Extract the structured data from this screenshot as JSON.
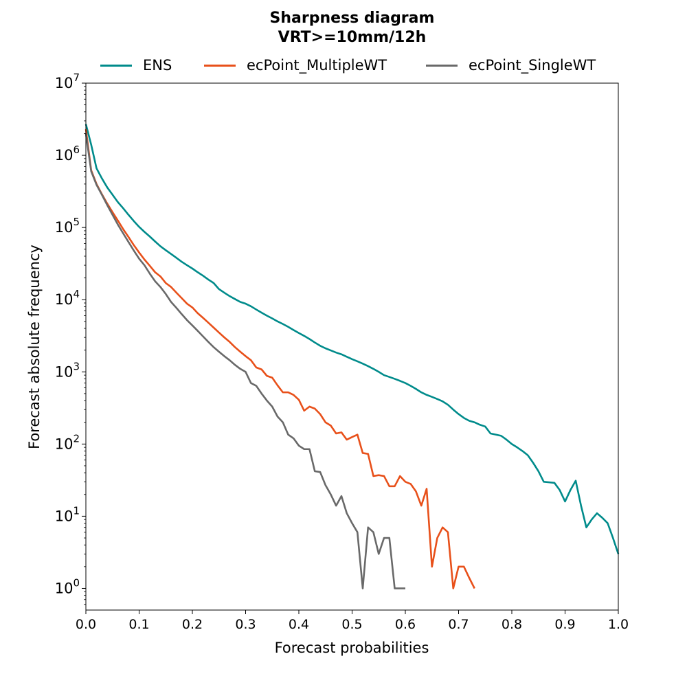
{
  "chart_data": {
    "type": "line",
    "title": "Sharpness diagram",
    "subtitle": "VRT>=10mm/12h",
    "xlabel": "Forecast probabilities",
    "ylabel": "Forecast absolute frequency",
    "xlim": [
      0.0,
      1.0
    ],
    "ylim_log10": [
      -0.3,
      7
    ],
    "yscale": "log",
    "grid": false,
    "legend_position": "top-center",
    "x_ticks": [
      "0.0",
      "0.1",
      "0.2",
      "0.3",
      "0.4",
      "0.5",
      "0.6",
      "0.7",
      "0.8",
      "0.9",
      "1.0"
    ],
    "y_ticks": [
      {
        "base": "10",
        "exp": "0"
      },
      {
        "base": "10",
        "exp": "1"
      },
      {
        "base": "10",
        "exp": "2"
      },
      {
        "base": "10",
        "exp": "3"
      },
      {
        "base": "10",
        "exp": "4"
      },
      {
        "base": "10",
        "exp": "5"
      },
      {
        "base": "10",
        "exp": "6"
      },
      {
        "base": "10",
        "exp": "7"
      }
    ],
    "series": [
      {
        "name": "ENS",
        "color": "#008b8b",
        "x": [
          0.0,
          0.01,
          0.02,
          0.03,
          0.04,
          0.05,
          0.06,
          0.07,
          0.08,
          0.09,
          0.1,
          0.11,
          0.12,
          0.13,
          0.14,
          0.15,
          0.16,
          0.17,
          0.18,
          0.19,
          0.2,
          0.21,
          0.22,
          0.23,
          0.24,
          0.25,
          0.26,
          0.27,
          0.28,
          0.29,
          0.3,
          0.31,
          0.32,
          0.33,
          0.34,
          0.35,
          0.36,
          0.37,
          0.38,
          0.39,
          0.4,
          0.41,
          0.42,
          0.43,
          0.44,
          0.45,
          0.46,
          0.47,
          0.48,
          0.49,
          0.5,
          0.51,
          0.52,
          0.53,
          0.54,
          0.55,
          0.56,
          0.57,
          0.58,
          0.59,
          0.6,
          0.61,
          0.62,
          0.63,
          0.64,
          0.65,
          0.66,
          0.67,
          0.68,
          0.69,
          0.7,
          0.71,
          0.72,
          0.73,
          0.74,
          0.75,
          0.76,
          0.77,
          0.78,
          0.79,
          0.8,
          0.81,
          0.82,
          0.83,
          0.84,
          0.85,
          0.86,
          0.87,
          0.88,
          0.89,
          0.9,
          0.91,
          0.92,
          0.93,
          0.94,
          0.95,
          0.96,
          0.97,
          0.98,
          0.99,
          1.0
        ],
        "y": [
          2700000,
          1400000,
          660000,
          480000,
          360000,
          285000,
          225000,
          185000,
          150000,
          123000,
          102000,
          87000,
          75000,
          64000,
          55000,
          48500,
          43000,
          38000,
          33500,
          30000,
          27000,
          24000,
          21500,
          19000,
          17000,
          14000,
          12500,
          11200,
          10200,
          9300,
          8800,
          8100,
          7300,
          6600,
          6000,
          5500,
          5000,
          4600,
          4200,
          3800,
          3450,
          3150,
          2850,
          2550,
          2300,
          2120,
          1980,
          1850,
          1750,
          1620,
          1500,
          1400,
          1300,
          1200,
          1100,
          1000,
          900,
          850,
          800,
          750,
          700,
          640,
          580,
          520,
          480,
          450,
          420,
          390,
          350,
          300,
          260,
          230,
          210,
          200,
          185,
          175,
          140,
          135,
          130,
          115,
          100,
          90,
          80,
          70,
          55,
          42,
          30,
          29.5,
          29,
          23,
          16,
          23,
          31,
          14,
          7,
          9,
          11,
          9.5,
          8,
          5,
          3
        ]
      },
      {
        "name": "ecPoint_MultipleWT",
        "color": "#e8501a",
        "x": [
          0.0,
          0.01,
          0.02,
          0.03,
          0.04,
          0.05,
          0.06,
          0.07,
          0.08,
          0.09,
          0.1,
          0.11,
          0.12,
          0.13,
          0.14,
          0.15,
          0.16,
          0.17,
          0.18,
          0.19,
          0.2,
          0.21,
          0.22,
          0.23,
          0.24,
          0.25,
          0.26,
          0.27,
          0.28,
          0.29,
          0.3,
          0.31,
          0.32,
          0.33,
          0.34,
          0.35,
          0.36,
          0.37,
          0.38,
          0.39,
          0.4,
          0.41,
          0.42,
          0.43,
          0.44,
          0.45,
          0.46,
          0.47,
          0.48,
          0.49,
          0.5,
          0.51,
          0.52,
          0.53,
          0.54,
          0.55,
          0.56,
          0.57,
          0.58,
          0.59,
          0.6,
          0.61,
          0.62,
          0.63,
          0.64,
          0.65,
          0.66,
          0.67,
          0.68,
          0.69,
          0.7,
          0.71,
          0.72,
          0.73
        ],
        "y": [
          2300000,
          620000,
          400000,
          290000,
          215000,
          163000,
          125000,
          95000,
          74000,
          57000,
          45000,
          36000,
          29500,
          24000,
          21000,
          17000,
          15000,
          12500,
          10500,
          8800,
          7800,
          6500,
          5600,
          4800,
          4100,
          3500,
          3000,
          2600,
          2200,
          1900,
          1650,
          1450,
          1150,
          1080,
          880,
          830,
          650,
          520,
          520,
          480,
          410,
          290,
          330,
          310,
          260,
          200,
          180,
          140,
          145,
          115,
          125,
          135,
          75,
          73,
          36,
          37,
          36,
          26,
          26,
          36,
          30,
          28,
          22,
          14,
          24,
          2,
          5,
          7,
          6,
          1,
          2,
          2,
          1.4,
          1
        ]
      },
      {
        "name": "ecPoint_SingleWT",
        "color": "#696969",
        "x": [
          0.0,
          0.01,
          0.02,
          0.03,
          0.04,
          0.05,
          0.06,
          0.07,
          0.08,
          0.09,
          0.1,
          0.11,
          0.12,
          0.13,
          0.14,
          0.15,
          0.16,
          0.17,
          0.18,
          0.19,
          0.2,
          0.21,
          0.22,
          0.23,
          0.24,
          0.25,
          0.26,
          0.27,
          0.28,
          0.29,
          0.3,
          0.31,
          0.32,
          0.33,
          0.34,
          0.35,
          0.36,
          0.37,
          0.38,
          0.39,
          0.4,
          0.41,
          0.42,
          0.43,
          0.44,
          0.45,
          0.46,
          0.47,
          0.48,
          0.49,
          0.5,
          0.51,
          0.52,
          0.53,
          0.54,
          0.55,
          0.56,
          0.57,
          0.58,
          0.59,
          0.6
        ],
        "y": [
          2000000,
          600000,
          390000,
          285000,
          205000,
          150000,
          110000,
          83000,
          63000,
          48000,
          37000,
          30000,
          23000,
          18000,
          15000,
          12000,
          9300,
          7700,
          6300,
          5200,
          4400,
          3700,
          3100,
          2600,
          2200,
          1900,
          1650,
          1450,
          1250,
          1100,
          1000,
          700,
          640,
          500,
          400,
          330,
          240,
          200,
          135,
          120,
          95,
          85,
          85,
          42,
          41,
          27,
          20,
          14,
          19,
          11,
          8,
          6,
          1,
          7,
          6,
          3,
          5,
          5,
          1,
          1,
          1
        ]
      }
    ]
  }
}
